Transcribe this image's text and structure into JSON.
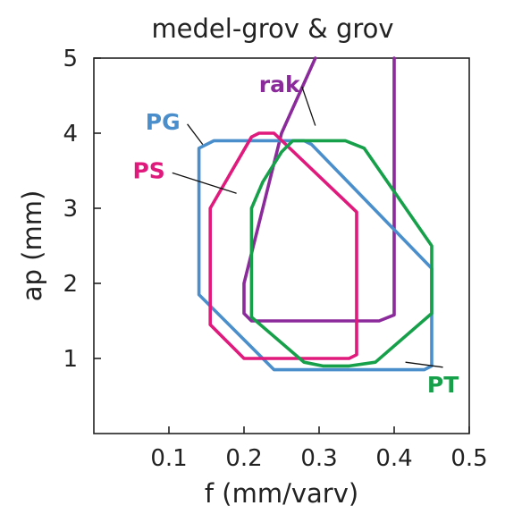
{
  "chart_data": {
    "type": "area",
    "title": "medel-grov & grov",
    "xlabel": "f (mm/varv)",
    "ylabel": "ap (mm)",
    "xlim": [
      0,
      0.5
    ],
    "ylim": [
      0,
      5
    ],
    "xticks": [
      "0.1",
      "0.2",
      "0.3",
      "0.4",
      "0.5"
    ],
    "yticks": [
      "1",
      "2",
      "3",
      "4",
      "5"
    ],
    "grid": false,
    "series": [
      {
        "name": "rak",
        "color": "#8b2a9b",
        "points": [
          [
            0.4,
            5.0
          ],
          [
            0.4,
            1.58
          ],
          [
            0.38,
            1.5
          ],
          [
            0.21,
            1.5
          ],
          [
            0.2,
            1.6
          ],
          [
            0.2,
            2.0
          ],
          [
            0.25,
            4.0
          ],
          [
            0.295,
            5.0
          ]
        ]
      },
      {
        "name": "PG",
        "color": "#4a8fcc",
        "points": [
          [
            0.16,
            3.9
          ],
          [
            0.28,
            3.9
          ],
          [
            0.29,
            3.85
          ],
          [
            0.45,
            2.2
          ],
          [
            0.45,
            0.9
          ],
          [
            0.44,
            0.85
          ],
          [
            0.24,
            0.85
          ],
          [
            0.14,
            1.85
          ],
          [
            0.14,
            3.8
          ]
        ]
      },
      {
        "name": "PS",
        "color": "#e0197d",
        "points": [
          [
            0.22,
            4.0
          ],
          [
            0.24,
            4.0
          ],
          [
            0.35,
            2.95
          ],
          [
            0.35,
            1.05
          ],
          [
            0.34,
            1.0
          ],
          [
            0.2,
            1.0
          ],
          [
            0.155,
            1.45
          ],
          [
            0.155,
            3.0
          ],
          [
            0.21,
            3.95
          ]
        ]
      },
      {
        "name": "PT",
        "color": "#17a04a",
        "points": [
          [
            0.265,
            3.9
          ],
          [
            0.335,
            3.9
          ],
          [
            0.36,
            3.8
          ],
          [
            0.45,
            2.5
          ],
          [
            0.45,
            1.6
          ],
          [
            0.375,
            0.95
          ],
          [
            0.34,
            0.9
          ],
          [
            0.305,
            0.9
          ],
          [
            0.28,
            0.95
          ],
          [
            0.21,
            1.55
          ],
          [
            0.21,
            3.0
          ],
          [
            0.225,
            3.35
          ],
          [
            0.25,
            3.75
          ]
        ]
      }
    ],
    "labels": [
      {
        "text": "rak",
        "color": "#8b2a9b",
        "at": [
          0.22,
          4.55
        ],
        "to": [
          0.295,
          4.1
        ],
        "anchor": "start"
      },
      {
        "text": "PG",
        "color": "#4a8fcc",
        "at": [
          0.115,
          4.05
        ],
        "to": [
          0.145,
          3.85
        ],
        "anchor": "end"
      },
      {
        "text": "PS",
        "color": "#e0197d",
        "at": [
          0.095,
          3.4
        ],
        "to": [
          0.19,
          3.2
        ],
        "anchor": "end"
      },
      {
        "text": "PT",
        "color": "#17a04a",
        "at": [
          0.465,
          0.55
        ],
        "to": [
          0.415,
          0.95
        ],
        "anchor": "middle"
      }
    ]
  }
}
